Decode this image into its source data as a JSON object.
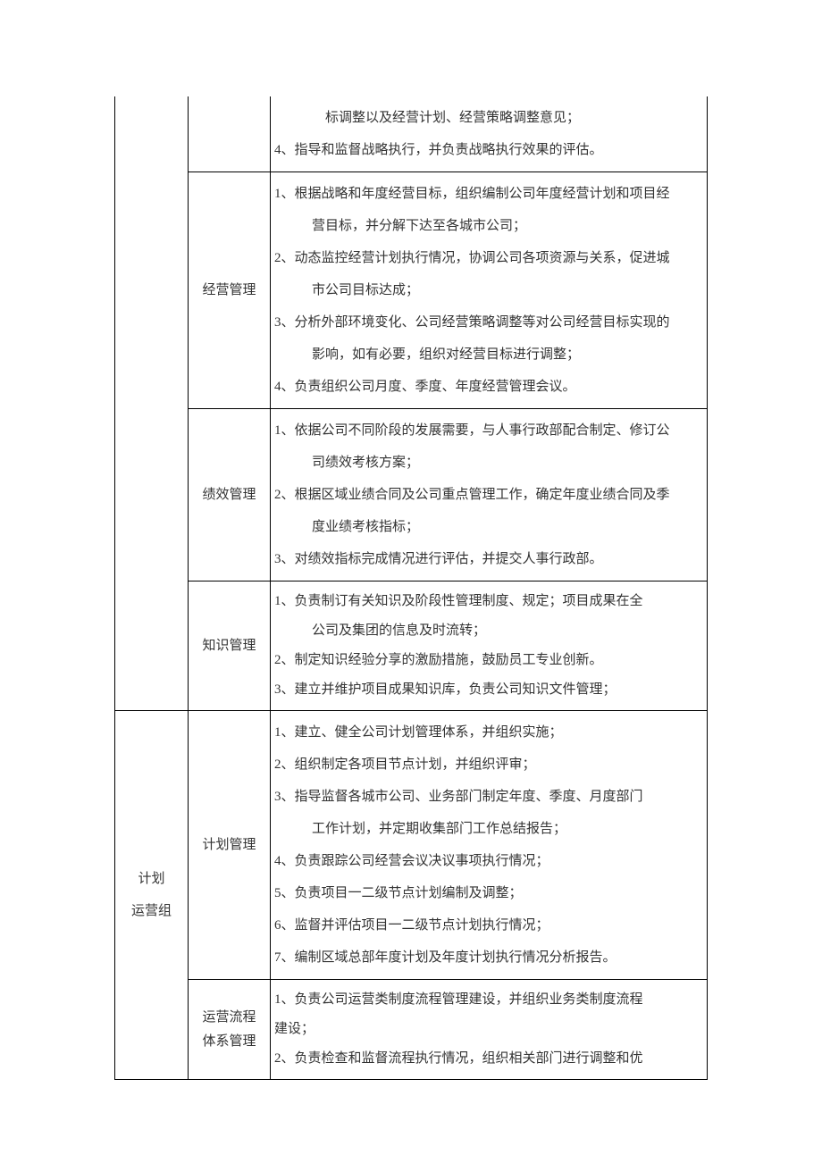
{
  "colors": {
    "text": "#333333",
    "border": "#000000",
    "background": "#ffffff"
  },
  "typography": {
    "font_family": "SimSun",
    "font_size": 15,
    "line_height": 2.4
  },
  "table": {
    "columns": {
      "dept_width": 82,
      "category_width": 92
    },
    "rows": [
      {
        "dept": "",
        "category": "",
        "partial": true,
        "items": [
          "　　标调整以及经营计划、经营策略调整意见；",
          "4、指导和监督战略执行，并负责战略执行效果的评估。"
        ]
      },
      {
        "dept": "",
        "category": "经营管理",
        "items": [
          "1、根据战略和年度经营目标，组织编制公司年度经营计划和项目经",
          "　营目标，并分解下达至各城市公司；",
          "2、动态监控经营计划执行情况，协调公司各项资源与关系，促进城",
          "　市公司目标达成；",
          "3、分析外部环境变化、公司经营策略调整等对公司经营目标实现的",
          "　影响，如有必要，组织对经营目标进行调整；",
          "4、负责组织公司月度、季度、年度经营管理会议。"
        ]
      },
      {
        "dept": "",
        "category": "绩效管理",
        "items": [
          "1、依据公司不同阶段的发展需要，与人事行政部配合制定、修订公",
          "　司绩效考核方案；",
          "2、根据区域业绩合同及公司重点管理工作，确定年度业绩合同及季",
          "　度业绩考核指标；",
          "3、对绩效指标完成情况进行评估，并提交人事行政部。"
        ]
      },
      {
        "dept": "",
        "category": "知识管理",
        "items": [
          "1、负责制订有关知识及阶段性管理制度、规定；项目成果在全",
          "　公司及集团的信息及时流转；",
          "2、制定知识经验分享的激励措施，鼓励员工专业创新。",
          "3、建立并维护项目成果知识库，负责公司知识文件管理；"
        ]
      },
      {
        "dept_lines": [
          "计划",
          "运营组"
        ],
        "category": "计划管理",
        "items": [
          "1、建立、健全公司计划管理体系，并组织实施；",
          "2、组织制定各项目节点计划，并组织评审；",
          "3、指导监督各城市公司、业务部门制定年度、季度、月度部门",
          "　工作计划，并定期收集部门工作总结报告；",
          "4、负责跟踪公司经营会议决议事项执行情况；",
          "5、负责项目一二级节点计划编制及调整；",
          "6、监督并评估项目一二级节点计划执行情况；",
          "7、编制区域总部年度计划及年度计划执行情况分析报告。"
        ]
      },
      {
        "dept": "",
        "category_lines": [
          "运营流程",
          "体系管理"
        ],
        "items": [
          "1、负责公司运营类制度流程管理建设，并组织业务类制度流程",
          "建设；",
          "2、负责检查和监督流程执行情况，组织相关部门进行调整和优"
        ]
      }
    ]
  }
}
